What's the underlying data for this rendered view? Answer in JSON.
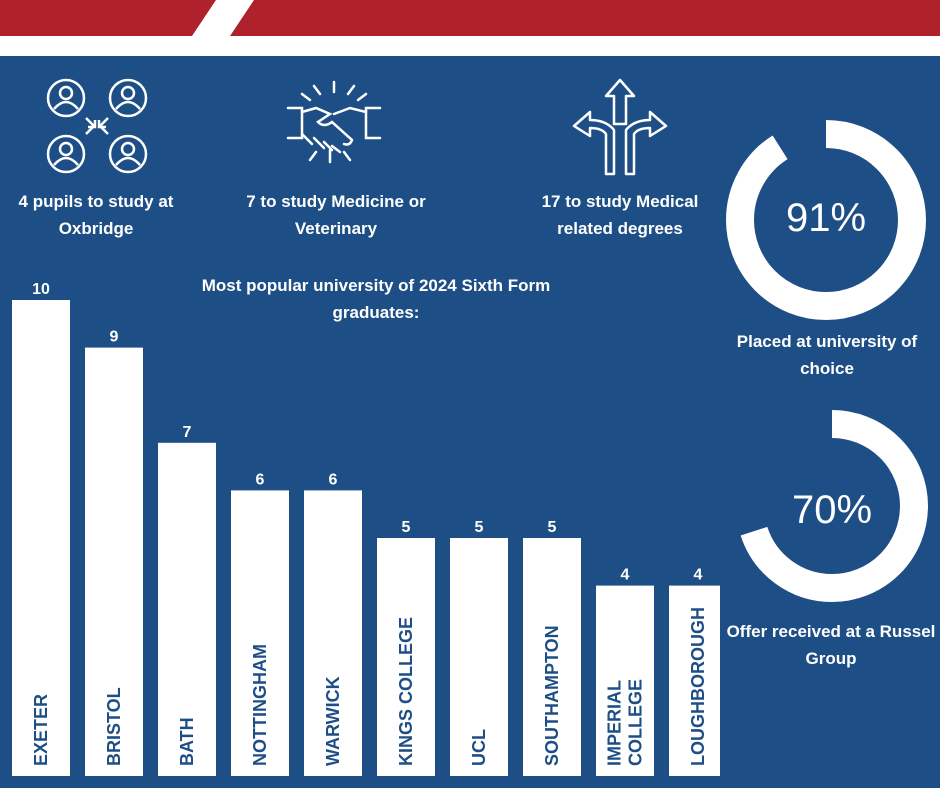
{
  "stats": {
    "oxbridge": "4 pupils to study at Oxbridge",
    "medicine": "7 to study Medicine or Veterinary",
    "medical": "17 to study Medical related degrees"
  },
  "icons": [
    "people-network-icon",
    "handshake-icon",
    "diverging-arrows-icon"
  ],
  "colors": {
    "background": "#1e4e86",
    "accent": "#b0222b",
    "bar": "#ffffff"
  },
  "gauges": [
    {
      "percent": "91%",
      "value": 91,
      "caption": "Placed at university of choice"
    },
    {
      "percent": "70%",
      "value": 70,
      "caption": "Offer received at a Russel Group"
    }
  ],
  "chart_data": {
    "type": "bar",
    "title": "Most popular university of 2024 Sixth Form graduates:",
    "categories": [
      "EXETER",
      "BRISTOL",
      "BATH",
      "NOTTINGHAM",
      "WARWICK",
      "KINGS COLLEGE",
      "UCL",
      "SOUTHAMPTON",
      "IMPERIAL COLLEGE",
      "LOUGHBOROUGH"
    ],
    "values": [
      10,
      9,
      7,
      6,
      6,
      5,
      5,
      5,
      4,
      4
    ]
  }
}
